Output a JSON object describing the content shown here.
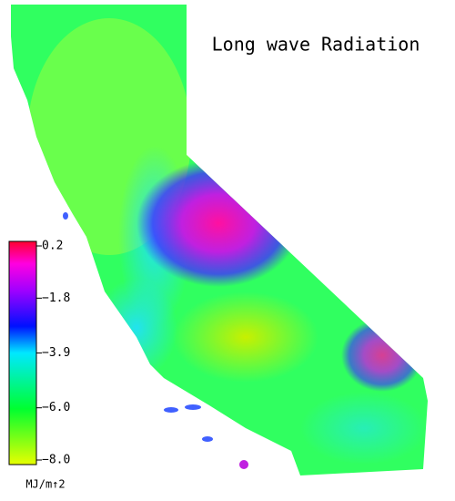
{
  "title": "Long wave Radiation",
  "colorbar": {
    "unit": "MJ/m↑2",
    "lim": [
      -8.0,
      0.2
    ],
    "ticks": [
      0.2,
      {
        "value": -1.8,
        "label": "−1.8"
      },
      {
        "value": -3.9,
        "label": "−3.9"
      },
      {
        "value": -6.0,
        "label": "−6.0"
      },
      {
        "value": -8.0,
        "label": "−8.0"
      }
    ]
  }
}
